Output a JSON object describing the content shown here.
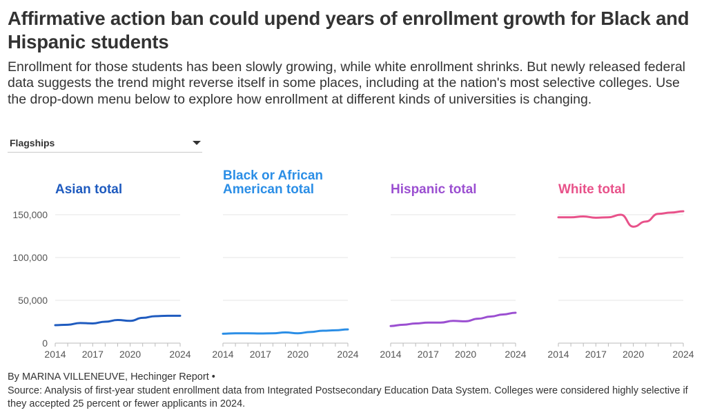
{
  "title": "Affirmative action ban could upend years of enrollment growth for Black and Hispanic students",
  "subtitle": "Enrollment for those students has been slowly growing, while white enrollment shrinks. But newly released federal data suggests the trend might reverse itself in some places, including at the nation's most selective colleges. Use the drop-down menu below to explore how enrollment at different kinds of universities is changing.",
  "dropdown": {
    "selected": "Flagships"
  },
  "panels": [
    {
      "title": "Asian total",
      "color": "#1f5bbf"
    },
    {
      "title": "Black or African American total",
      "color": "#2b8ee6"
    },
    {
      "title": "Hispanic total",
      "color": "#9b4fd1"
    },
    {
      "title": "White total",
      "color": "#e8528a"
    }
  ],
  "footer": {
    "byline": "By MARINA VILLENEUVE, Hechinger Report •",
    "source": "Source: Analysis of first-year student enrollment data from Integrated Postsecondary Education Data System. Colleges were considered highly selective if they accepted 25 percent or fewer applicants in 2024."
  },
  "chart_data": {
    "type": "line",
    "title": "Affirmative action ban could upend years of enrollment growth for Black and Hispanic students",
    "x": [
      2014,
      2015,
      2016,
      2017,
      2018,
      2019,
      2020,
      2021,
      2022,
      2023,
      2024
    ],
    "xticks": [
      "2014",
      "2017",
      "2020",
      "2024"
    ],
    "yticks": [
      "0",
      "50,000",
      "100,000",
      "150,000"
    ],
    "ylim": [
      0,
      150000
    ],
    "xlim": [
      2014,
      2024
    ],
    "xlabel": "",
    "ylabel": "",
    "series": [
      {
        "name": "Asian total",
        "values": [
          21000,
          21500,
          23500,
          23000,
          25000,
          27000,
          26000,
          29500,
          31500,
          32000,
          32000
        ]
      },
      {
        "name": "Black or African American total",
        "values": [
          11000,
          11500,
          11500,
          11300,
          11500,
          12500,
          11500,
          13000,
          14500,
          15000,
          16000
        ]
      },
      {
        "name": "Hispanic total",
        "values": [
          20000,
          21500,
          23000,
          24000,
          24000,
          26000,
          25500,
          28500,
          31000,
          33500,
          35500
        ]
      },
      {
        "name": "White total",
        "values": [
          147000,
          147000,
          148000,
          146500,
          147000,
          150000,
          136000,
          142000,
          151000,
          152500,
          154000
        ]
      }
    ]
  }
}
